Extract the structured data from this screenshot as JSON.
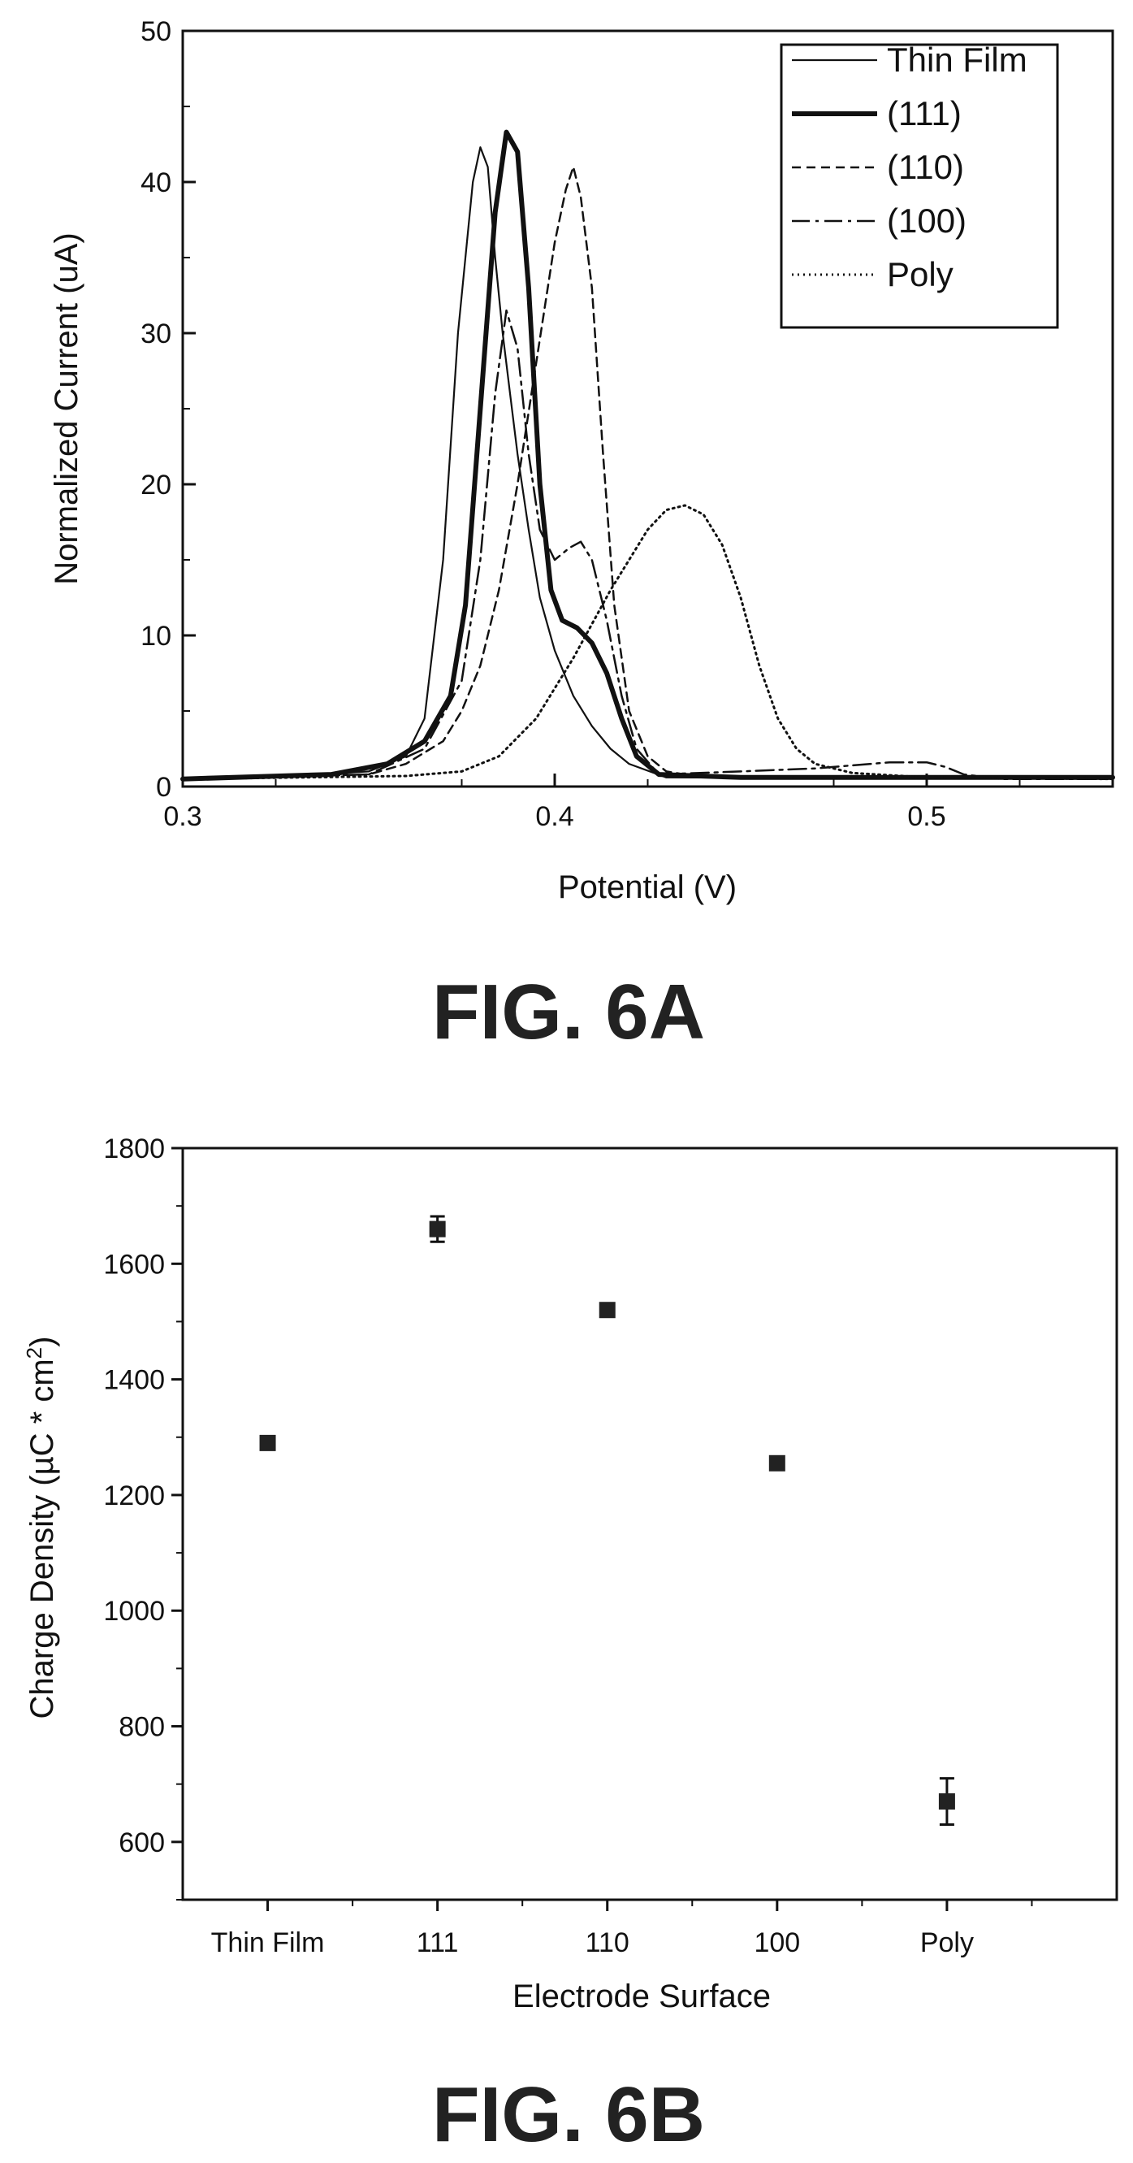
{
  "figures": [
    {
      "caption": "FIG. 6A"
    },
    {
      "caption": "FIG. 6B"
    }
  ],
  "chart_data": [
    {
      "type": "line",
      "xlabel": "Potential (V)",
      "ylabel": "Normalized Current (uA)",
      "xlim": [
        0.3,
        0.55
      ],
      "ylim": [
        0,
        50
      ],
      "xticks": [
        "0.3",
        "0.4",
        "0.5"
      ],
      "yticks": [
        "0",
        "10",
        "20",
        "30",
        "40",
        "50"
      ],
      "legend_position": "top-right",
      "series": [
        {
          "name": "Thin Film",
          "style": "solid-thin",
          "x": [
            0.3,
            0.33,
            0.35,
            0.36,
            0.365,
            0.37,
            0.374,
            0.378,
            0.38,
            0.382,
            0.384,
            0.386,
            0.388,
            0.39,
            0.393,
            0.396,
            0.4,
            0.405,
            0.41,
            0.415,
            0.42,
            0.43,
            0.55
          ],
          "y": [
            0.5,
            0.7,
            1.0,
            2.0,
            4.5,
            15.0,
            30.0,
            40.0,
            42.3,
            41.0,
            35.0,
            30.0,
            26.0,
            22.0,
            17.0,
            12.5,
            9.0,
            6.0,
            4.0,
            2.5,
            1.5,
            0.6,
            0.5
          ]
        },
        {
          "name": "(111)",
          "style": "solid-thick",
          "x": [
            0.3,
            0.34,
            0.355,
            0.365,
            0.372,
            0.376,
            0.38,
            0.384,
            0.387,
            0.39,
            0.393,
            0.396,
            0.399,
            0.402,
            0.406,
            0.41,
            0.414,
            0.418,
            0.422,
            0.428,
            0.45,
            0.55
          ],
          "y": [
            0.5,
            0.8,
            1.5,
            3.0,
            6.0,
            12.0,
            25.0,
            38.0,
            43.3,
            42.0,
            33.0,
            20.0,
            13.0,
            11.0,
            10.5,
            9.5,
            7.5,
            4.5,
            2.0,
            0.8,
            0.6,
            0.6
          ]
        },
        {
          "name": "(110)",
          "style": "dashed",
          "x": [
            0.3,
            0.35,
            0.36,
            0.37,
            0.375,
            0.38,
            0.385,
            0.39,
            0.395,
            0.4,
            0.403,
            0.405,
            0.407,
            0.41,
            0.413,
            0.416,
            0.42,
            0.425,
            0.43,
            0.44,
            0.5,
            0.55
          ],
          "y": [
            0.5,
            0.8,
            1.5,
            3.0,
            5.0,
            8.0,
            13.0,
            20.0,
            28.0,
            36.0,
            39.5,
            41.0,
            39.0,
            33.0,
            22.0,
            12.0,
            5.0,
            2.0,
            1.0,
            0.6,
            0.6,
            0.6
          ]
        },
        {
          "name": "(100)",
          "style": "dash-dot",
          "x": [
            0.3,
            0.35,
            0.365,
            0.375,
            0.38,
            0.384,
            0.387,
            0.39,
            0.393,
            0.396,
            0.4,
            0.404,
            0.407,
            0.41,
            0.414,
            0.418,
            0.422,
            0.428,
            0.45,
            0.47,
            0.49,
            0.5,
            0.505,
            0.51,
            0.52,
            0.55
          ],
          "y": [
            0.5,
            0.8,
            2.5,
            7.0,
            15.0,
            26.0,
            31.5,
            29.0,
            22.0,
            17.0,
            15.0,
            15.8,
            16.2,
            15.0,
            11.0,
            6.0,
            2.5,
            0.8,
            1.0,
            1.2,
            1.6,
            1.6,
            1.3,
            0.8,
            0.5,
            0.5
          ]
        },
        {
          "name": "Poly",
          "style": "dotted",
          "x": [
            0.3,
            0.36,
            0.375,
            0.385,
            0.395,
            0.405,
            0.415,
            0.425,
            0.43,
            0.435,
            0.44,
            0.445,
            0.45,
            0.455,
            0.46,
            0.465,
            0.47,
            0.48,
            0.5,
            0.55
          ],
          "y": [
            0.5,
            0.7,
            1.0,
            2.0,
            4.5,
            8.5,
            13.0,
            17.0,
            18.3,
            18.6,
            18.0,
            16.0,
            12.5,
            8.0,
            4.5,
            2.5,
            1.5,
            0.9,
            0.6,
            0.5
          ]
        }
      ]
    },
    {
      "type": "scatter",
      "xlabel": "Electrode Surface",
      "ylabel_main": "Charge Density (µC * cm",
      "ylabel_sup": "2",
      "ylabel_end": ")",
      "categories": [
        "Thin Film",
        "111",
        "110",
        "100",
        "Poly"
      ],
      "values": [
        1290,
        1660,
        1520,
        1255,
        670
      ],
      "errors": [
        8,
        22,
        10,
        8,
        40
      ],
      "ylim": [
        500,
        1800
      ],
      "yticks": [
        "600",
        "800",
        "1000",
        "1200",
        "1400",
        "1600",
        "1800"
      ]
    }
  ]
}
